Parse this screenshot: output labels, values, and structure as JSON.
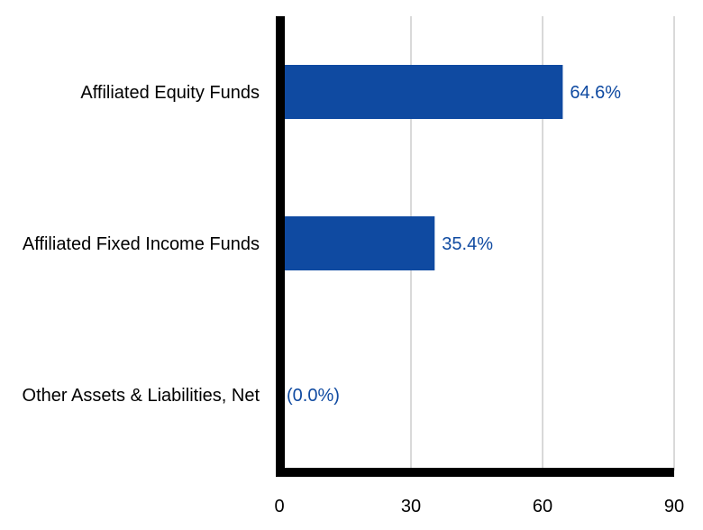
{
  "chart_data": {
    "type": "bar",
    "orientation": "horizontal",
    "categories": [
      "Affiliated Equity Funds",
      "Affiliated Fixed Income Funds",
      "Other Assets & Liabilities, Net"
    ],
    "values": [
      64.6,
      35.4,
      0.0
    ],
    "value_labels": [
      "64.6%",
      "35.4%",
      "(0.0%)"
    ],
    "xlim": [
      0,
      90
    ],
    "xticks": [
      0,
      30,
      60,
      90
    ],
    "tick_labels": [
      "0",
      "30",
      "60",
      "90"
    ],
    "grid": true,
    "bar_color": "#0f4aa1",
    "label_color": "#0f4aa1",
    "grid_color": "#d9d9d9",
    "axis_color": "#000000"
  }
}
